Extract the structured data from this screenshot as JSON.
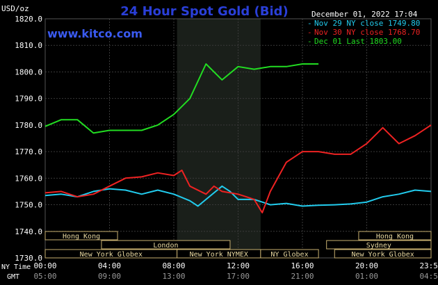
{
  "chart_data": {
    "type": "line",
    "title": "24 Hour Spot Gold (Bid)",
    "watermark": "www.kitco.com",
    "unit_label": "USD/oz",
    "timestamp": "December 01, 2022 17:04",
    "ylim": [
      1730,
      1820
    ],
    "y_ticks": [
      "1820.0",
      "1810.0",
      "1800.0",
      "1790.0",
      "1780.0",
      "1770.0",
      "1760.0",
      "1750.0",
      "1740.0",
      "1730.0"
    ],
    "xlim": [
      0,
      24
    ],
    "x_ticks_ny": [
      "00:00",
      "04:00",
      "08:00",
      "12:00",
      "16:00",
      "20:00",
      "23:59"
    ],
    "x_ticks_gmt": [
      "05:00",
      "09:00",
      "13:00",
      "17:00",
      "21:00",
      "01:00",
      "04:59"
    ],
    "x_row_labels": [
      "NY Time",
      "GMT"
    ],
    "shaded_band": [
      8.2,
      13.4
    ],
    "colors": {
      "blue": "#22ccee",
      "red": "#ee2222",
      "green": "#22dd22",
      "grid": "#3a3a3a",
      "axis_text": "#ffffff",
      "title": "#2a3fd8",
      "band": "#1a1f1a"
    },
    "legend": [
      {
        "label": "Nov 29 NY close 1749.80",
        "color": "#22ccee"
      },
      {
        "label": "Nov 30 NY close 1768.70",
        "color": "#ee2222"
      },
      {
        "label": "Dec 01 Last 1803.00",
        "color": "#22dd22"
      }
    ],
    "series": [
      {
        "name": "Nov 29",
        "color": "#22ccee",
        "points": [
          [
            0,
            1753.5
          ],
          [
            1,
            1754
          ],
          [
            2,
            1753
          ],
          [
            3,
            1755
          ],
          [
            4,
            1756
          ],
          [
            5,
            1755.5
          ],
          [
            6,
            1754
          ],
          [
            7,
            1755.5
          ],
          [
            8,
            1754
          ],
          [
            9,
            1751.5
          ],
          [
            9.5,
            1749.5
          ],
          [
            10,
            1752
          ],
          [
            11,
            1757
          ],
          [
            11.5,
            1755
          ],
          [
            12,
            1752
          ],
          [
            13,
            1752
          ],
          [
            13.5,
            1751
          ],
          [
            14,
            1750
          ],
          [
            15,
            1750.5
          ],
          [
            16,
            1749.5
          ],
          [
            17,
            1749.8
          ],
          [
            18,
            1750
          ],
          [
            19,
            1750.3
          ],
          [
            20,
            1751
          ],
          [
            21,
            1753
          ],
          [
            22,
            1754
          ],
          [
            23,
            1755.5
          ],
          [
            24,
            1755
          ]
        ]
      },
      {
        "name": "Nov 30",
        "color": "#ee2222",
        "points": [
          [
            0,
            1754.5
          ],
          [
            1,
            1755
          ],
          [
            2,
            1753
          ],
          [
            3,
            1754
          ],
          [
            4,
            1757
          ],
          [
            5,
            1760
          ],
          [
            6,
            1760.5
          ],
          [
            7,
            1762
          ],
          [
            8,
            1761
          ],
          [
            8.5,
            1763
          ],
          [
            9,
            1757
          ],
          [
            10,
            1754
          ],
          [
            10.5,
            1757
          ],
          [
            11,
            1755
          ],
          [
            12,
            1754
          ],
          [
            12.5,
            1753
          ],
          [
            13,
            1752
          ],
          [
            13.5,
            1747
          ],
          [
            14,
            1755
          ],
          [
            15,
            1766
          ],
          [
            16,
            1770
          ],
          [
            17,
            1770
          ],
          [
            18,
            1769
          ],
          [
            19,
            1769
          ],
          [
            20,
            1773
          ],
          [
            21,
            1779
          ],
          [
            21.5,
            1776
          ],
          [
            22,
            1773
          ],
          [
            23,
            1776
          ],
          [
            24,
            1780
          ]
        ]
      },
      {
        "name": "Dec 01",
        "color": "#22dd22",
        "points": [
          [
            0,
            1779.5
          ],
          [
            1,
            1782
          ],
          [
            2,
            1782
          ],
          [
            3,
            1777
          ],
          [
            4,
            1778
          ],
          [
            5,
            1778
          ],
          [
            6,
            1778
          ],
          [
            7,
            1780
          ],
          [
            8,
            1784
          ],
          [
            9,
            1790
          ],
          [
            10,
            1803
          ],
          [
            11,
            1797
          ],
          [
            12,
            1802
          ],
          [
            13,
            1801
          ],
          [
            14,
            1802
          ],
          [
            15,
            1802
          ],
          [
            16,
            1803
          ],
          [
            17,
            1803
          ]
        ]
      }
    ],
    "sessions": [
      {
        "label": "Hong Kong",
        "start": 0,
        "end": 4.5,
        "row": 0
      },
      {
        "label": "London",
        "start": 3.5,
        "end": 11.5,
        "row": 1
      },
      {
        "label": "New York Globex",
        "start": 0,
        "end": 8.2,
        "row": 2
      },
      {
        "label": "New York NYMEX",
        "start": 8.2,
        "end": 13.4,
        "row": 2
      },
      {
        "label": "NY Globex",
        "start": 13.4,
        "end": 17,
        "row": 2
      },
      {
        "label": "Hong Kong",
        "start": 19.5,
        "end": 24,
        "row": 0
      },
      {
        "label": "Sydney",
        "start": 17.5,
        "end": 24,
        "row": 1
      },
      {
        "label": "New York Globex",
        "start": 18,
        "end": 24,
        "row": 2
      }
    ]
  }
}
